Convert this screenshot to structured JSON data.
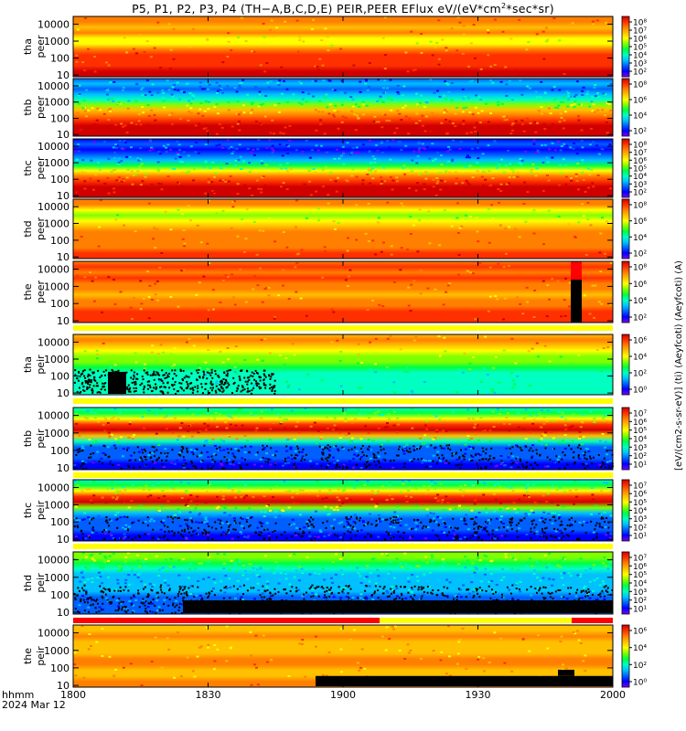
{
  "title_parts": {
    "pre": "P5, P1, P2, P3, P4 (TH−A,B,C,D,E) PEIR,PEER EFlux eV/(eV*cm",
    "sup": "2",
    "post": "*sec*sr)"
  },
  "footer": {
    "line1": "hhmm",
    "line2": "2024 Mar 12"
  },
  "colorbar_unit_label": "[eV/(cm2-s-sr-eV)] (ti) (Aeyfcoti) (Aeyfcoti) (A)",
  "chart_data": {
    "type": "heatmap",
    "x_axis": {
      "ticks": [
        "1800",
        "1830",
        "1900",
        "1930",
        "2000"
      ],
      "range": [
        "18:00",
        "20:00"
      ]
    },
    "y_scale": "log",
    "panels": [
      {
        "probe": "tha",
        "species": "peer",
        "yticks": [
          "10000",
          "1000",
          "100",
          "10"
        ],
        "cbar_ticks": [
          "10⁸",
          "10⁷",
          "10⁶",
          "10⁵",
          "10⁴",
          "10³",
          "10²"
        ],
        "flag_bar": ""
      },
      {
        "probe": "thb",
        "species": "peer",
        "yticks": [
          "10000",
          "1000",
          "100",
          "10"
        ],
        "cbar_ticks": [
          "10⁸",
          "10⁶",
          "10⁴",
          "10²"
        ],
        "flag_bar": ""
      },
      {
        "probe": "thc",
        "species": "peer",
        "yticks": [
          "10000",
          "1000",
          "100",
          "10"
        ],
        "cbar_ticks": [
          "10⁸",
          "10⁷",
          "10⁶",
          "10⁵",
          "10⁴",
          "10³",
          "10²"
        ],
        "flag_bar": ""
      },
      {
        "probe": "thd",
        "species": "peer",
        "yticks": [
          "10000",
          "1000",
          "100",
          "10"
        ],
        "cbar_ticks": [
          "10⁸",
          "10⁶",
          "10⁴",
          "10²"
        ],
        "flag_bar": ""
      },
      {
        "probe": "the",
        "species": "peer",
        "yticks": [
          "10000",
          "1000",
          "100",
          "10"
        ],
        "cbar_ticks": [
          "10⁸",
          "10⁶",
          "10⁴",
          "10²"
        ],
        "flag_bar": "yellow"
      },
      {
        "probe": "tha",
        "species": "peir",
        "yticks": [
          "10000",
          "1000",
          "100",
          "10"
        ],
        "cbar_ticks": [
          "10⁶",
          "10⁴",
          "10²",
          "10⁰"
        ],
        "flag_bar": "yellow"
      },
      {
        "probe": "thb",
        "species": "peir",
        "yticks": [
          "10000",
          "1000",
          "100",
          "10"
        ],
        "cbar_ticks": [
          "10⁷",
          "10⁶",
          "10⁵",
          "10⁴",
          "10³",
          "10²",
          "10¹"
        ],
        "flag_bar": "yellow"
      },
      {
        "probe": "thc",
        "species": "peir",
        "yticks": [
          "10000",
          "1000",
          "100",
          "10"
        ],
        "cbar_ticks": [
          "10⁷",
          "10⁶",
          "10⁵",
          "10⁴",
          "10³",
          "10²",
          "10¹"
        ],
        "flag_bar": "yellow"
      },
      {
        "probe": "thd",
        "species": "peir",
        "yticks": [
          "10000",
          "1000",
          "100",
          "10"
        ],
        "cbar_ticks": [
          "10⁷",
          "10⁶",
          "10⁵",
          "10⁴",
          "10³",
          "10²",
          "10¹"
        ],
        "flag_bar": "red-yellow-red"
      },
      {
        "probe": "the",
        "species": "peir",
        "yticks": [
          "10000",
          "1000",
          "100",
          "10"
        ],
        "cbar_ticks": [
          "10⁶",
          "10⁴",
          "10²",
          "10⁰"
        ],
        "flag_bar": ""
      }
    ]
  },
  "colors": {
    "colormap": [
      "#7f00ff",
      "#0000ff",
      "#0060ff",
      "#00c0ff",
      "#00ffc0",
      "#00ff40",
      "#80ff00",
      "#ffff00",
      "#ffc000",
      "#ff8000",
      "#ff3000",
      "#d00000"
    ],
    "no_data": "#000000",
    "flag_yellow": "#ffff00",
    "flag_red": "#ff0000"
  }
}
